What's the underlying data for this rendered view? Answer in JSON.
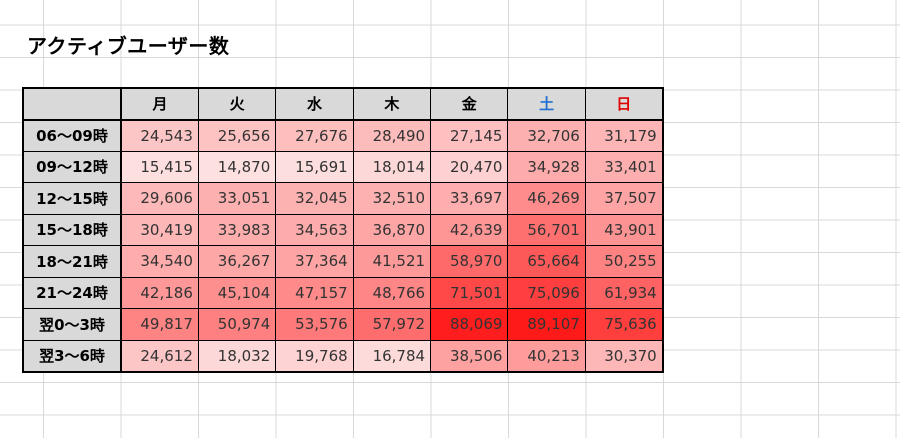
{
  "title": "アクティブユーザー数",
  "header": {
    "corner": "",
    "days": [
      {
        "label": "月",
        "color": "#000000"
      },
      {
        "label": "火",
        "color": "#000000"
      },
      {
        "label": "水",
        "color": "#000000"
      },
      {
        "label": "木",
        "color": "#000000"
      },
      {
        "label": "金",
        "color": "#000000"
      },
      {
        "label": "土",
        "color": "#1f6fd1"
      },
      {
        "label": "日",
        "color": "#e00000"
      }
    ]
  },
  "rows": [
    {
      "label": "06〜09時",
      "values": [
        "24,543",
        "25,656",
        "27,676",
        "28,490",
        "27,145",
        "32,706",
        "31,179"
      ]
    },
    {
      "label": "09〜12時",
      "values": [
        "15,415",
        "14,870",
        "15,691",
        "18,014",
        "20,470",
        "34,928",
        "33,401"
      ]
    },
    {
      "label": "12〜15時",
      "values": [
        "29,606",
        "33,051",
        "32,045",
        "32,510",
        "33,697",
        "46,269",
        "37,507"
      ]
    },
    {
      "label": "15〜18時",
      "values": [
        "30,419",
        "33,983",
        "34,563",
        "36,870",
        "42,639",
        "56,701",
        "43,901"
      ]
    },
    {
      "label": "18〜21時",
      "values": [
        "34,540",
        "36,267",
        "37,364",
        "41,521",
        "58,970",
        "65,664",
        "50,255"
      ]
    },
    {
      "label": "21〜24時",
      "values": [
        "42,186",
        "45,104",
        "47,157",
        "48,766",
        "71,501",
        "75,096",
        "61,934"
      ]
    },
    {
      "label": "翌0〜3時",
      "values": [
        "49,817",
        "50,974",
        "53,576",
        "57,972",
        "88,069",
        "89,107",
        "75,636"
      ]
    },
    {
      "label": "翌3〜6時",
      "values": [
        "24,612",
        "18,032",
        "19,768",
        "16,784",
        "38,506",
        "40,213",
        "30,370"
      ]
    }
  ],
  "heat_scale": {
    "low_color": "#fde0e0",
    "high_color": "#ff1a1a"
  }
}
